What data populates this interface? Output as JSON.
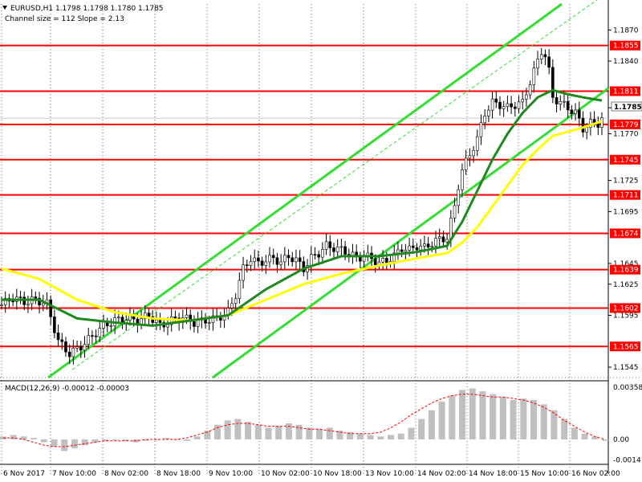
{
  "header": {
    "symbol_line": "EURUSD,H1  1.1798 1.1798 1.1780 1.1785",
    "channel_line": "Channel size = 112 Slope = 2.13"
  },
  "macd": {
    "label": "MACD(12,26,9) -0.00012 -0.00003",
    "yticks": [
      "0.00358",
      "0.00",
      "-0.00141"
    ]
  },
  "current_price": "1.1785",
  "colors": {
    "level": "#ff0000",
    "channel": "#33dd33",
    "ma_fast": "#1e8a1e",
    "ma_slow": "#ffff00",
    "macd_hist": "#c0c0c0",
    "macd_signal": "#ff0000",
    "grid": "#000000"
  },
  "chart_data": {
    "type": "candlestick",
    "symbol": "EURUSD",
    "timeframe": "H1",
    "ylim": [
      1.1535,
      1.1895
    ],
    "price_ticks": [
      "1.1870",
      "1.1855",
      "1.1840",
      "1.1811",
      "1.1795",
      "1.1779",
      "1.1770",
      "1.1745",
      "1.1725",
      "1.1711",
      "1.1695",
      "1.1674",
      "1.1645",
      "1.1639",
      "1.1625",
      "1.1602",
      "1.1595",
      "1.1565",
      "1.1545"
    ],
    "levels": [
      1.1855,
      1.1811,
      1.1779,
      1.1745,
      1.1711,
      1.1674,
      1.1639,
      1.1602,
      1.1565
    ],
    "level_labels": [
      "1.1855",
      "1.1811",
      "1.1779",
      "1.1745",
      "1.1711",
      "1.1674",
      "1.1639",
      "1.1602",
      "1.1565"
    ],
    "x_labels": [
      "6 Nov 2017",
      "7 Nov 10:00",
      "8 Nov 02:00",
      "8 Nov 18:00",
      "9 Nov 10:00",
      "10 Nov 02:00",
      "10 Nov 18:00",
      "13 Nov 10:00",
      "14 Nov 02:00",
      "14 Nov 18:00",
      "15 Nov 10:00",
      "16 Nov 02:00"
    ],
    "close_path": [
      [
        0,
        1.1605
      ],
      [
        3,
        1.1612
      ],
      [
        6,
        1.1608
      ],
      [
        9,
        1.161
      ],
      [
        12,
        1.1606
      ],
      [
        15,
        1.157
      ],
      [
        18,
        1.1558
      ],
      [
        21,
        1.1565
      ],
      [
        24,
        1.1575
      ],
      [
        27,
        1.1585
      ],
      [
        30,
        1.159
      ],
      [
        33,
        1.1592
      ],
      [
        36,
        1.159
      ],
      [
        39,
        1.1595
      ],
      [
        42,
        1.1585
      ],
      [
        45,
        1.159
      ],
      [
        48,
        1.1593
      ],
      [
        51,
        1.1588
      ],
      [
        54,
        1.159
      ],
      [
        57,
        1.1592
      ],
      [
        60,
        1.1598
      ],
      [
        62,
        1.1615
      ],
      [
        64,
        1.164
      ],
      [
        66,
        1.165
      ],
      [
        68,
        1.1645
      ],
      [
        70,
        1.1648
      ],
      [
        72,
        1.165
      ],
      [
        74,
        1.1646
      ],
      [
        76,
        1.1652
      ],
      [
        78,
        1.1648
      ],
      [
        80,
        1.164
      ],
      [
        82,
        1.165
      ],
      [
        84,
        1.1655
      ],
      [
        86,
        1.1662
      ],
      [
        88,
        1.166
      ],
      [
        90,
        1.1658
      ],
      [
        92,
        1.1655
      ],
      [
        94,
        1.165
      ],
      [
        96,
        1.1652
      ],
      [
        98,
        1.165
      ],
      [
        100,
        1.1645
      ],
      [
        102,
        1.1648
      ],
      [
        104,
        1.1652
      ],
      [
        106,
        1.166
      ],
      [
        108,
        1.1658
      ],
      [
        110,
        1.1662
      ],
      [
        112,
        1.166
      ],
      [
        114,
        1.1665
      ],
      [
        116,
        1.1668
      ],
      [
        118,
        1.167
      ],
      [
        119,
        1.1685
      ],
      [
        120,
        1.17
      ],
      [
        121,
        1.172
      ],
      [
        122,
        1.1735
      ],
      [
        124,
        1.175
      ],
      [
        126,
        1.1765
      ],
      [
        128,
        1.179
      ],
      [
        130,
        1.18
      ],
      [
        132,
        1.1798
      ],
      [
        134,
        1.1795
      ],
      [
        136,
        1.1798
      ],
      [
        138,
        1.18
      ],
      [
        140,
        1.182
      ],
      [
        142,
        1.184
      ],
      [
        143,
        1.185
      ],
      [
        144,
        1.1845
      ],
      [
        145,
        1.183
      ],
      [
        146,
        1.1805
      ],
      [
        148,
        1.18
      ],
      [
        150,
        1.1795
      ],
      [
        152,
        1.179
      ],
      [
        154,
        1.1775
      ],
      [
        156,
        1.178
      ],
      [
        158,
        1.178
      ],
      [
        159,
        1.1785
      ]
    ],
    "ma_fast": [
      [
        0,
        1.161
      ],
      [
        10,
        1.161
      ],
      [
        20,
        1.1592
      ],
      [
        30,
        1.1588
      ],
      [
        40,
        1.1585
      ],
      [
        50,
        1.159
      ],
      [
        60,
        1.1595
      ],
      [
        70,
        1.162
      ],
      [
        80,
        1.164
      ],
      [
        90,
        1.1652
      ],
      [
        100,
        1.1652
      ],
      [
        110,
        1.1656
      ],
      [
        118,
        1.1662
      ],
      [
        122,
        1.1685
      ],
      [
        126,
        1.1715
      ],
      [
        130,
        1.1745
      ],
      [
        134,
        1.177
      ],
      [
        138,
        1.179
      ],
      [
        142,
        1.1805
      ],
      [
        146,
        1.1812
      ],
      [
        150,
        1.1808
      ],
      [
        154,
        1.1805
      ],
      [
        159,
        1.1802
      ]
    ],
    "ma_slow": [
      [
        0,
        1.164
      ],
      [
        10,
        1.163
      ],
      [
        20,
        1.161
      ],
      [
        30,
        1.1598
      ],
      [
        40,
        1.1592
      ],
      [
        50,
        1.159
      ],
      [
        60,
        1.1595
      ],
      [
        70,
        1.161
      ],
      [
        80,
        1.1625
      ],
      [
        90,
        1.1635
      ],
      [
        100,
        1.1643
      ],
      [
        110,
        1.165
      ],
      [
        118,
        1.1655
      ],
      [
        122,
        1.1665
      ],
      [
        126,
        1.168
      ],
      [
        130,
        1.17
      ],
      [
        134,
        1.172
      ],
      [
        138,
        1.174
      ],
      [
        142,
        1.1755
      ],
      [
        146,
        1.1768
      ],
      [
        150,
        1.1772
      ],
      [
        154,
        1.1776
      ],
      [
        159,
        1.1782
      ]
    ],
    "macd_hist": [
      0.0002,
      0.0003,
      0.0002,
      0.0001,
      -0.0002,
      -0.0005,
      -0.0008,
      -0.0006,
      -0.0004,
      -0.0002,
      -0.0001,
      0.0,
      -0.0001,
      -0.0002,
      -0.0001,
      0.0,
      0.0001,
      0.0,
      -0.0001,
      0.0002,
      0.0006,
      0.001,
      0.0013,
      0.0014,
      0.0012,
      0.001,
      0.0008,
      0.0009,
      0.0011,
      0.001,
      0.0008,
      0.0007,
      0.0008,
      0.0006,
      0.0005,
      0.0004,
      0.0003,
      0.0002,
      0.0003,
      0.0004,
      0.0008,
      0.0014,
      0.002,
      0.0026,
      0.003,
      0.0034,
      0.0035,
      0.0033,
      0.0031,
      0.0029,
      0.0027,
      0.0028,
      0.0027,
      0.0024,
      0.002,
      0.0014,
      0.0008,
      0.0004,
      0.0002,
      -0.0001
    ],
    "macd_signal": [
      0.0001,
      0.0001,
      0.0,
      -0.0002,
      -0.0004,
      -0.0005,
      -0.0005,
      -0.0004,
      -0.0003,
      -0.0002,
      -0.0001,
      -0.0001,
      -0.0001,
      -0.0001,
      0.0,
      0.0,
      0.0,
      0.0,
      0.0001,
      0.0003,
      0.0005,
      0.0008,
      0.001,
      0.0011,
      0.0011,
      0.001,
      0.0009,
      0.0009,
      0.0009,
      0.0008,
      0.0007,
      0.0007,
      0.0006,
      0.0005,
      0.0004,
      0.0004,
      0.0004,
      0.0005,
      0.0008,
      0.0012,
      0.0017,
      0.0021,
      0.0025,
      0.0028,
      0.003,
      0.0031,
      0.0031,
      0.003,
      0.0029,
      0.0029,
      0.0028,
      0.0027,
      0.0025,
      0.0022,
      0.0018,
      0.0013,
      0.0009,
      0.0005,
      0.0002,
      -0.0
    ]
  }
}
